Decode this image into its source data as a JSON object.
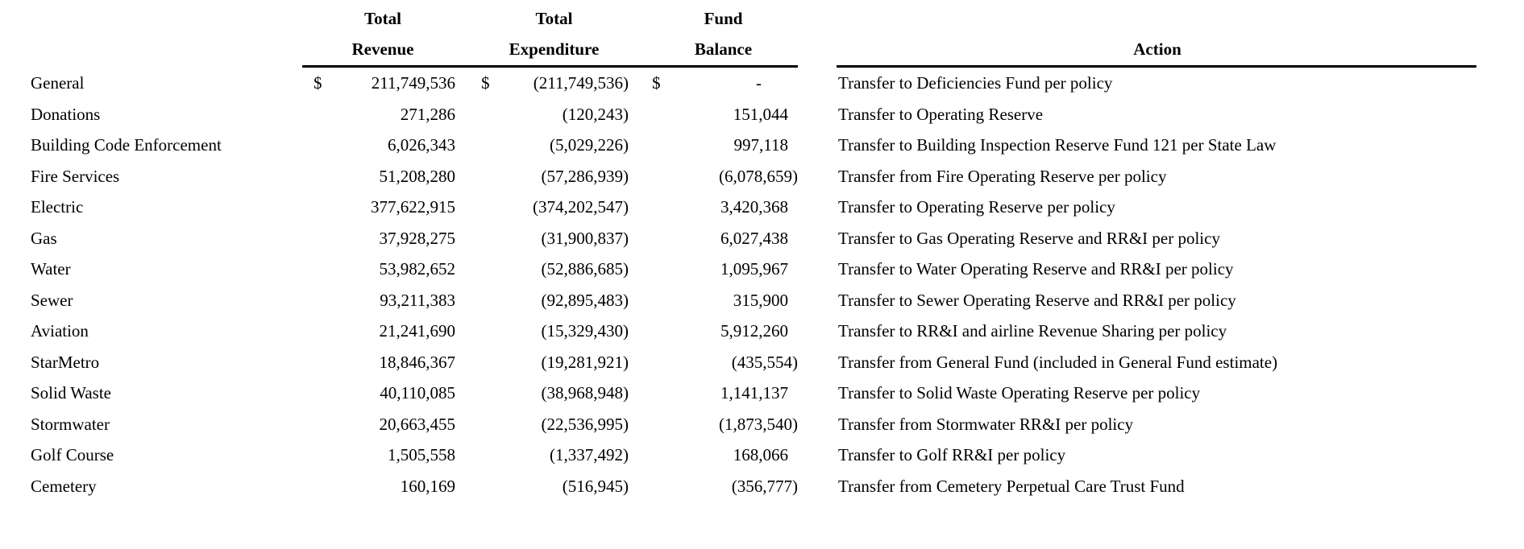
{
  "table": {
    "headers": {
      "revenue_line1": "Total",
      "revenue_line2": "Revenue",
      "expenditure_line1": "Total",
      "expenditure_line2": "Expenditure",
      "balance_line1": "Fund",
      "balance_line2": "Balance",
      "action": "Action"
    },
    "rows": [
      {
        "fund": "General",
        "rev_cur": "$",
        "revenue": "211,749,536",
        "exp_cur": "$",
        "expenditure": "(211,749,536)",
        "bal_cur": "$",
        "balance": "-",
        "action": "Transfer to Deficiencies Fund per policy"
      },
      {
        "fund": "Donations",
        "rev_cur": "",
        "revenue": "271,286",
        "exp_cur": "",
        "expenditure": "(120,243)",
        "bal_cur": "",
        "balance": "151,044",
        "action": "Transfer to Operating Reserve"
      },
      {
        "fund": "Building Code Enforcement",
        "rev_cur": "",
        "revenue": "6,026,343",
        "exp_cur": "",
        "expenditure": "(5,029,226)",
        "bal_cur": "",
        "balance": "997,118",
        "action": "Transfer to Building Inspection Reserve Fund 121 per State Law"
      },
      {
        "fund": "Fire Services",
        "rev_cur": "",
        "revenue": "51,208,280",
        "exp_cur": "",
        "expenditure": "(57,286,939)",
        "bal_cur": "",
        "balance": "(6,078,659)",
        "action": "Transfer from Fire Operating Reserve per policy"
      },
      {
        "fund": "Electric",
        "rev_cur": "",
        "revenue": "377,622,915",
        "exp_cur": "",
        "expenditure": "(374,202,547)",
        "bal_cur": "",
        "balance": "3,420,368",
        "action": "Transfer to Operating Reserve per policy"
      },
      {
        "fund": "Gas",
        "rev_cur": "",
        "revenue": "37,928,275",
        "exp_cur": "",
        "expenditure": "(31,900,837)",
        "bal_cur": "",
        "balance": "6,027,438",
        "action": "Transfer to Gas Operating Reserve and RR&I per policy"
      },
      {
        "fund": "Water",
        "rev_cur": "",
        "revenue": "53,982,652",
        "exp_cur": "",
        "expenditure": "(52,886,685)",
        "bal_cur": "",
        "balance": "1,095,967",
        "action": "Transfer to Water Operating Reserve and RR&I per policy"
      },
      {
        "fund": "Sewer",
        "rev_cur": "",
        "revenue": "93,211,383",
        "exp_cur": "",
        "expenditure": "(92,895,483)",
        "bal_cur": "",
        "balance": "315,900",
        "action": "Transfer to Sewer Operating Reserve and RR&I per policy"
      },
      {
        "fund": "Aviation",
        "rev_cur": "",
        "revenue": "21,241,690",
        "exp_cur": "",
        "expenditure": "(15,329,430)",
        "bal_cur": "",
        "balance": "5,912,260",
        "action": "Transfer to RR&I and airline Revenue Sharing per policy"
      },
      {
        "fund": "StarMetro",
        "rev_cur": "",
        "revenue": "18,846,367",
        "exp_cur": "",
        "expenditure": "(19,281,921)",
        "bal_cur": "",
        "balance": "(435,554)",
        "action": "Transfer from General Fund (included in General Fund estimate)"
      },
      {
        "fund": "Solid Waste",
        "rev_cur": "",
        "revenue": "40,110,085",
        "exp_cur": "",
        "expenditure": "(38,968,948)",
        "bal_cur": "",
        "balance": "1,141,137",
        "action": "Transfer to Solid Waste Operating Reserve per policy"
      },
      {
        "fund": "Stormwater",
        "rev_cur": "",
        "revenue": "20,663,455",
        "exp_cur": "",
        "expenditure": "(22,536,995)",
        "bal_cur": "",
        "balance": "(1,873,540)",
        "action": "Transfer from Stormwater RR&I per policy"
      },
      {
        "fund": "Golf Course",
        "rev_cur": "",
        "revenue": "1,505,558",
        "exp_cur": "",
        "expenditure": "(1,337,492)",
        "bal_cur": "",
        "balance": "168,066",
        "action": "Transfer to Golf RR&I per policy"
      },
      {
        "fund": "Cemetery",
        "rev_cur": "",
        "revenue": "160,169",
        "exp_cur": "",
        "expenditure": "(516,945)",
        "bal_cur": "",
        "balance": "(356,777)",
        "action": "Transfer from Cemetery Perpetual Care Trust Fund"
      }
    ]
  }
}
